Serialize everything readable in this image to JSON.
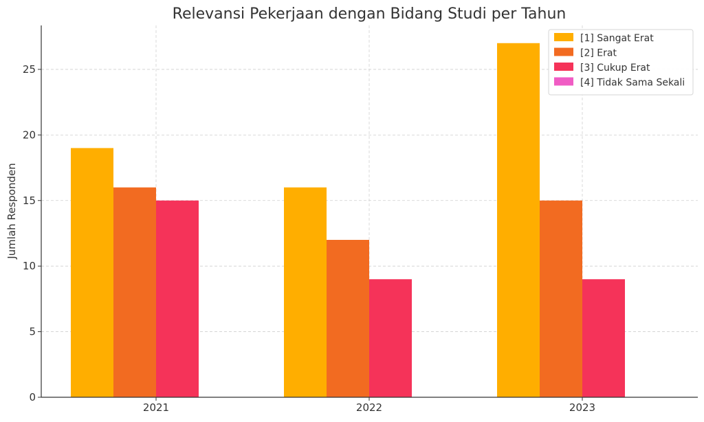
{
  "chart_data": {
    "type": "bar",
    "title": "Relevansi Pekerjaan dengan Bidang Studi per Tahun",
    "xlabel": "",
    "ylabel": "Jumlah Responden",
    "categories": [
      "2021",
      "2022",
      "2023"
    ],
    "ylim": [
      0,
      28.35
    ],
    "yticks": [
      0,
      5,
      10,
      15,
      20,
      25
    ],
    "grid": true,
    "legend_position": "top-right",
    "series": [
      {
        "name": "[1] Sangat Erat",
        "color": "#FFAE00",
        "values": [
          19,
          16,
          27
        ]
      },
      {
        "name": "[2] Erat",
        "color": "#F26B21",
        "values": [
          16,
          12,
          15
        ]
      },
      {
        "name": "[3] Cukup Erat",
        "color": "#F53359",
        "values": [
          15,
          9,
          9
        ]
      },
      {
        "name": "[4] Tidak Sama Sekali",
        "color": "#F05CC4",
        "values": [
          0,
          0,
          0
        ]
      }
    ]
  }
}
